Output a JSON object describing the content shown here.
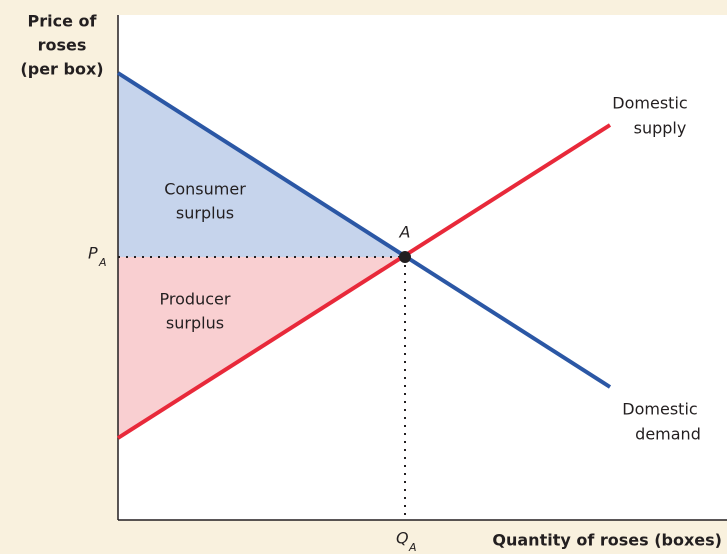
{
  "diagram": {
    "y_axis_label": [
      "Price of",
      "roses",
      "(per box)"
    ],
    "x_axis_label": "Quantity of roses (boxes)",
    "consumer_surplus": [
      "Consumer",
      "surplus"
    ],
    "producer_surplus": [
      "Producer",
      "surplus"
    ],
    "supply_label": [
      "Domestic",
      "supply"
    ],
    "demand_label": [
      "Domestic",
      "demand"
    ],
    "equilibrium_label": "A",
    "price_label": {
      "main": "P",
      "sub": "A"
    },
    "quantity_label": {
      "main": "Q",
      "sub": "A"
    }
  }
}
